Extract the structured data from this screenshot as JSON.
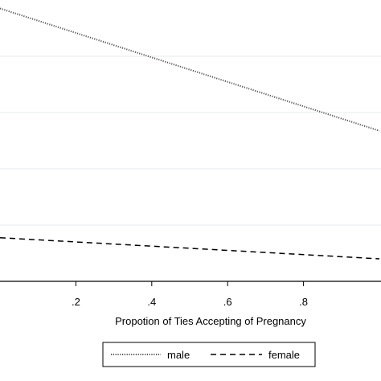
{
  "chart_data": {
    "type": "line",
    "xlabel": "Propotion of Ties Accepting of Pregnancy",
    "ylabel": "",
    "xlim": [
      0,
      1
    ],
    "x_ticks": [
      ".2",
      ".4",
      ".6",
      ".8"
    ],
    "x_tick_values": [
      0.2,
      0.4,
      0.6,
      0.8
    ],
    "grid": true,
    "legend_position": "bottom",
    "series": [
      {
        "name": "male",
        "style": "dotted",
        "color": "#555555",
        "points": [
          {
            "x": 0.0,
            "y": 0.97
          },
          {
            "x": 1.0,
            "y": 0.535
          }
        ]
      },
      {
        "name": "female",
        "style": "dashed",
        "color": "#000000",
        "points": [
          {
            "x": 0.0,
            "y": 0.155
          },
          {
            "x": 1.0,
            "y": 0.08
          }
        ]
      }
    ],
    "ylim": [
      0,
      1
    ]
  }
}
